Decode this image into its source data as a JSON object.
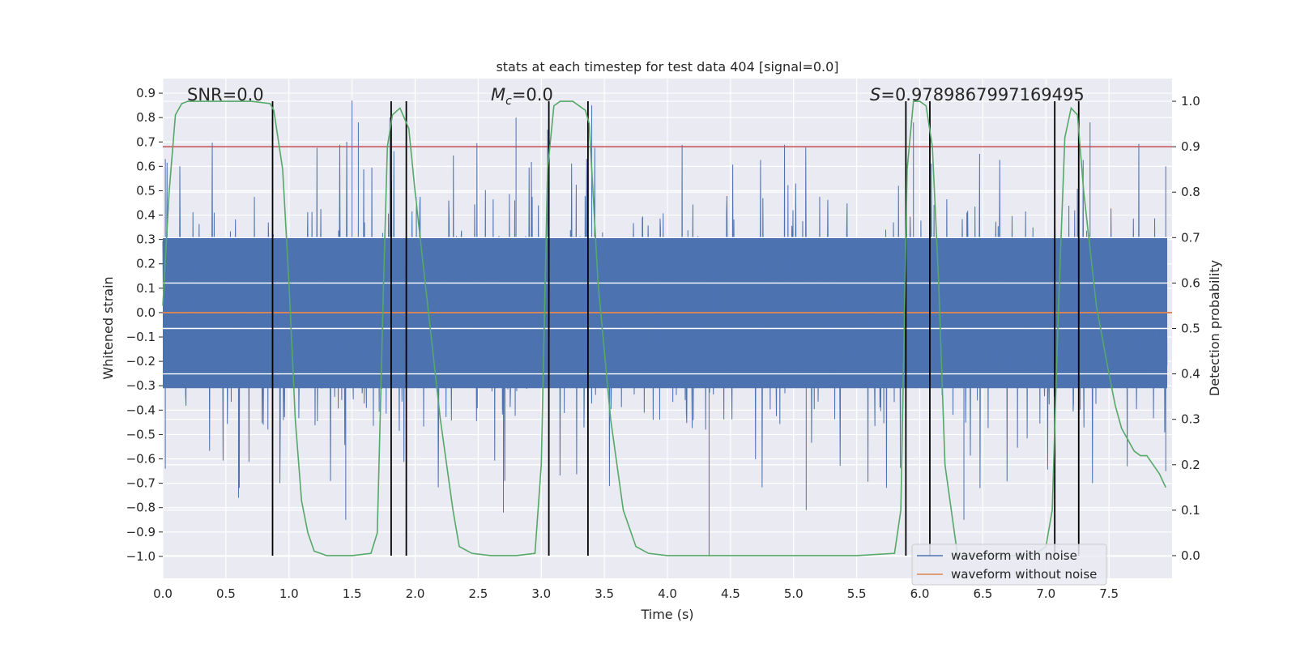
{
  "chart_data": {
    "type": "line",
    "title": "stats at each timestep for test data 404 [signal=0.0]",
    "xlabel": "Time (s)",
    "ylabel": "Whitened strain",
    "y2label": "Detection probability",
    "xlim": [
      0.0,
      8.0
    ],
    "ylim": [
      -1.09,
      0.96
    ],
    "y2lim": [
      -0.05,
      1.05
    ],
    "xticks": [
      0.0,
      0.5,
      1.0,
      1.5,
      2.0,
      2.5,
      3.0,
      3.5,
      4.0,
      4.5,
      5.0,
      5.5,
      6.0,
      6.5,
      7.0,
      7.5
    ],
    "yticks": [
      0.9,
      0.8,
      0.7,
      0.6,
      0.5,
      0.4,
      0.3,
      0.2,
      0.1,
      0.0,
      -0.1,
      -0.2,
      -0.3,
      -0.4,
      -0.5,
      -0.6,
      -0.7,
      -0.8,
      -0.9,
      -1.0
    ],
    "y2ticks": [
      1.0,
      0.9,
      0.8,
      0.7,
      0.6,
      0.5,
      0.4,
      0.3,
      0.2,
      0.1,
      0.0
    ],
    "annotations": {
      "snr": "SNR=0.0",
      "mc_symbol": "M",
      "mc_sub": "c",
      "mc_value": "=0.0",
      "s_symbol": "S",
      "s_value": "=0.9789867997169495"
    },
    "legend": {
      "position": "lower right",
      "entries": [
        "waveform with noise",
        "waveform without noise"
      ]
    },
    "colors": {
      "noise": "#4c72b0",
      "clean": "#dd8452",
      "probability": "#55a868",
      "threshold": "#c44e52",
      "markers": "#000000",
      "plot_bg": "#eaeaf2",
      "grid": "#ffffff"
    },
    "threshold_probability": 0.9,
    "clean_waveform_value": 0.0,
    "noise_envelope": {
      "core": 0.31,
      "peak_max": 0.87,
      "trough_min": -1.0
    },
    "noise_peaks": [
      {
        "x": 0.02,
        "y": 0.63
      },
      {
        "x": 1.5,
        "y": 0.87
      },
      {
        "x": 1.55,
        "y": 0.78
      },
      {
        "x": 1.8,
        "y": 0.8
      },
      {
        "x": 2.8,
        "y": 0.8
      },
      {
        "x": 3.05,
        "y": 0.75
      },
      {
        "x": 3.4,
        "y": 0.85
      },
      {
        "x": 5.95,
        "y": 0.78
      },
      {
        "x": 7.35,
        "y": 0.78
      },
      {
        "x": 7.95,
        "y": 0.6
      }
    ],
    "noise_troughs": [
      {
        "x": 0.02,
        "y": -0.64
      },
      {
        "x": 0.6,
        "y": -0.76
      },
      {
        "x": 1.45,
        "y": -0.85
      },
      {
        "x": 2.7,
        "y": -0.82
      },
      {
        "x": 4.33,
        "y": -1.0
      },
      {
        "x": 5.1,
        "y": -0.81
      },
      {
        "x": 6.35,
        "y": -0.85
      },
      {
        "x": 7.95,
        "y": -0.65
      }
    ],
    "detection_probability": {
      "x": [
        0.0,
        0.05,
        0.1,
        0.15,
        0.2,
        0.3,
        0.5,
        0.7,
        0.85,
        0.88,
        0.95,
        1.0,
        1.05,
        1.1,
        1.15,
        1.2,
        1.3,
        1.5,
        1.65,
        1.7,
        1.75,
        1.78,
        1.82,
        1.88,
        1.95,
        2.0,
        2.1,
        2.2,
        2.3,
        2.35,
        2.45,
        2.6,
        2.8,
        2.95,
        3.0,
        3.05,
        3.1,
        3.15,
        3.25,
        3.35,
        3.38,
        3.45,
        3.55,
        3.65,
        3.75,
        3.85,
        4.0,
        4.5,
        5.0,
        5.5,
        5.8,
        5.85,
        5.9,
        5.95,
        6.0,
        6.05,
        6.1,
        6.15,
        6.2,
        6.3,
        6.4,
        6.5,
        6.7,
        6.9,
        7.0,
        7.05,
        7.1,
        7.15,
        7.2,
        7.25,
        7.3,
        7.4,
        7.5,
        7.55,
        7.6,
        7.7,
        7.75,
        7.8,
        7.85,
        7.9,
        7.95
      ],
      "y": [
        0.55,
        0.8,
        0.97,
        0.995,
        1.0,
        1.0,
        1.0,
        1.0,
        0.995,
        0.98,
        0.85,
        0.6,
        0.3,
        0.12,
        0.05,
        0.01,
        0.0,
        0.0,
        0.005,
        0.05,
        0.6,
        0.9,
        0.97,
        0.985,
        0.94,
        0.8,
        0.55,
        0.3,
        0.1,
        0.02,
        0.005,
        0.0,
        0.0,
        0.005,
        0.2,
        0.85,
        0.99,
        1.0,
        1.0,
        0.98,
        0.95,
        0.6,
        0.3,
        0.1,
        0.02,
        0.005,
        0.0,
        0.0,
        0.0,
        0.0,
        0.005,
        0.1,
        0.85,
        1.0,
        1.0,
        0.99,
        0.9,
        0.6,
        0.2,
        0.0,
        0.0,
        0.0,
        0.0,
        0.0,
        0.02,
        0.1,
        0.55,
        0.92,
        0.985,
        0.97,
        0.8,
        0.55,
        0.4,
        0.33,
        0.28,
        0.23,
        0.22,
        0.22,
        0.2,
        0.18,
        0.15
      ]
    },
    "event_markers_x": [
      0.87,
      1.81,
      1.93,
      3.06,
      3.37,
      5.89,
      6.08,
      7.07,
      7.26
    ]
  }
}
